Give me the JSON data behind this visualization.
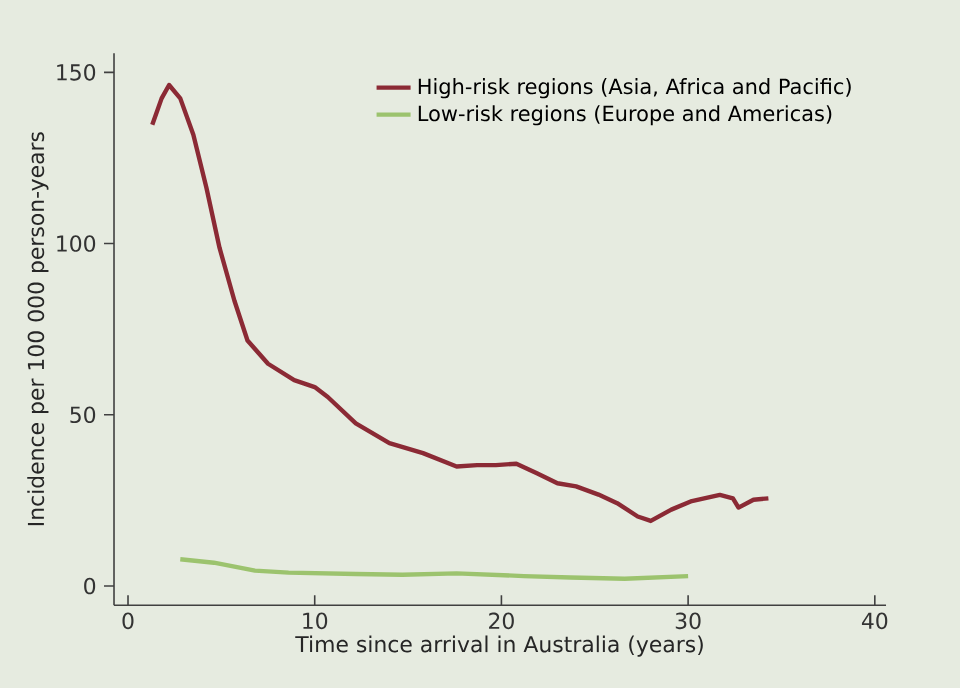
{
  "chart_data": {
    "type": "line",
    "xlabel": "Time since arrival in Australia (years)",
    "ylabel": "Incidence per 100 000 person-years",
    "xlim": [
      -0.75,
      40.6
    ],
    "ylim": [
      -5.6,
      155.6
    ],
    "xticks": [
      0,
      10,
      20,
      30,
      40
    ],
    "yticks": [
      0,
      50,
      100,
      150
    ],
    "legend": "top right",
    "grid": false,
    "marker": "none",
    "line_style": "solid",
    "series": [
      {
        "name": "High-risk regions (Asia, Africa and Pacific)",
        "color": "#8b2a35",
        "x": [
          1.3,
          1.8,
          2.2,
          2.8,
          3.5,
          4.2,
          4.9,
          5.7,
          6.4,
          7.5,
          8.9,
          10,
          10.7,
          12.2,
          14,
          15.8,
          17.6,
          18.7,
          19.7,
          20.8,
          21.9,
          23,
          24,
          25.2,
          26.2,
          27.3,
          28,
          29.1,
          30.2,
          31.7,
          32.4,
          32.7,
          33.5,
          34.3
        ],
        "values": [
          134.7,
          142.4,
          146.3,
          142.4,
          131.8,
          116.3,
          98.8,
          83.3,
          71.7,
          64.9,
          60.1,
          58.1,
          55.2,
          47.5,
          41.7,
          38.8,
          34.9,
          35.3,
          35.3,
          35.7,
          32.9,
          30,
          29.1,
          26.7,
          24.2,
          20.3,
          19,
          22.3,
          24.8,
          26.6,
          25.6,
          22.9,
          25.2,
          25.6
        ]
      },
      {
        "name": "Low-risk regions (Europe and Americas)",
        "color": "#9cc36e",
        "x": [
          2.8,
          4.6,
          6.8,
          8.6,
          12.2,
          14.7,
          17.6,
          21.2,
          23.7,
          26.6,
          30
        ],
        "values": [
          7.8,
          6.8,
          4.5,
          3.9,
          3.5,
          3.3,
          3.7,
          2.9,
          2.5,
          2.1,
          2.9
        ]
      }
    ]
  }
}
